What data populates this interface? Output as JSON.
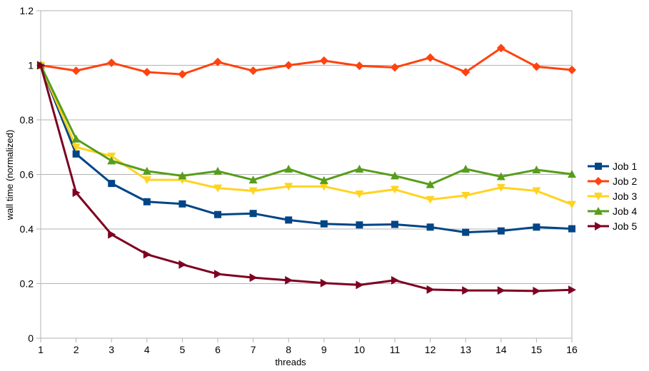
{
  "chart_data": {
    "type": "line",
    "xlabel": "threads",
    "ylabel": "wall time (normalized)",
    "x": [
      1,
      2,
      3,
      4,
      5,
      6,
      7,
      8,
      9,
      10,
      11,
      12,
      13,
      14,
      15,
      16
    ],
    "xlim": [
      1,
      16
    ],
    "ylim": [
      0,
      1.2
    ],
    "y_ticks": [
      "0",
      "0.2",
      "0.4",
      "0.6",
      "0.8",
      "1",
      "1.2"
    ],
    "x_ticks": [
      "1",
      "2",
      "3",
      "4",
      "5",
      "6",
      "7",
      "8",
      "9",
      "10",
      "11",
      "12",
      "13",
      "14",
      "15",
      "16"
    ],
    "grid": "horizontal",
    "legend_position": "right",
    "series": [
      {
        "name": "Job 1",
        "color": "#004586",
        "marker": "square",
        "values": [
          1.0,
          0.675,
          0.567,
          0.5,
          0.492,
          0.453,
          0.457,
          0.433,
          0.419,
          0.415,
          0.417,
          0.407,
          0.388,
          0.393,
          0.407,
          0.401
        ]
      },
      {
        "name": "Job 2",
        "color": "#ff420e",
        "marker": "diamond",
        "values": [
          1.0,
          0.98,
          1.009,
          0.975,
          0.967,
          1.012,
          0.98,
          1.0,
          1.017,
          0.998,
          0.992,
          1.028,
          0.975,
          1.063,
          0.995,
          0.983
        ]
      },
      {
        "name": "Job 3",
        "color": "#ffd320",
        "marker": "triangle-down",
        "values": [
          1.0,
          0.7,
          0.667,
          0.58,
          0.58,
          0.55,
          0.54,
          0.556,
          0.556,
          0.528,
          0.545,
          0.508,
          0.523,
          0.552,
          0.54,
          0.49
        ]
      },
      {
        "name": "Job 4",
        "color": "#579d1c",
        "marker": "triangle-up",
        "values": [
          1.0,
          0.73,
          0.65,
          0.612,
          0.595,
          0.612,
          0.58,
          0.62,
          0.578,
          0.62,
          0.595,
          0.563,
          0.62,
          0.592,
          0.617,
          0.601
        ]
      },
      {
        "name": "Job 5",
        "color": "#7e0021",
        "marker": "triangle-right",
        "values": [
          1.0,
          0.533,
          0.38,
          0.307,
          0.27,
          0.235,
          0.222,
          0.212,
          0.202,
          0.195,
          0.212,
          0.178,
          0.175,
          0.175,
          0.173,
          0.177
        ]
      }
    ]
  }
}
